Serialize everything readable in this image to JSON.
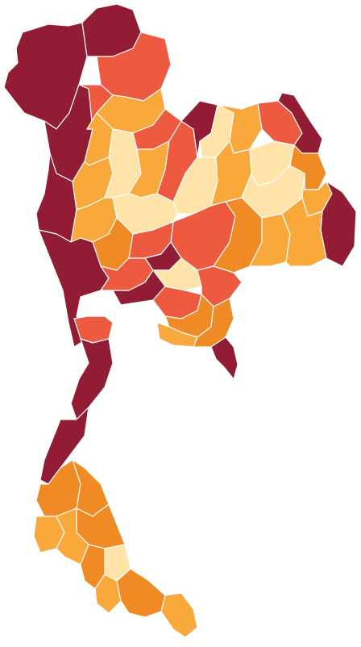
{
  "map": {
    "legend_visible": false,
    "palette": {
      "level_1": "#ffe3a8",
      "level_2": "#f9a93c",
      "level_3": "#f08a24",
      "level_4": "#ed5a3f",
      "level_5": "#911c33"
    },
    "provinces": [
      {
        "id": "north-far-west",
        "level": 5
      },
      {
        "id": "north-west",
        "level": 5
      },
      {
        "id": "north-north",
        "level": 5
      },
      {
        "id": "north-east-a",
        "level": 4
      },
      {
        "id": "north-east-b",
        "level": 4
      },
      {
        "id": "north-mid-a",
        "level": 2
      },
      {
        "id": "north-mid-b",
        "level": 2
      },
      {
        "id": "north-mid-c",
        "level": 4
      },
      {
        "id": "lower-north-west",
        "level": 5
      },
      {
        "id": "lower-north-a",
        "level": 2
      },
      {
        "id": "lower-north-b",
        "level": 1
      },
      {
        "id": "lower-north-c",
        "level": 2
      },
      {
        "id": "lower-north-d",
        "level": 4
      },
      {
        "id": "lower-north-e",
        "level": 5
      },
      {
        "id": "isan-north-a",
        "level": 1
      },
      {
        "id": "isan-north-b",
        "level": 2
      },
      {
        "id": "isan-north-c",
        "level": 4
      },
      {
        "id": "isan-north-d",
        "level": 5
      },
      {
        "id": "isan-west-a",
        "level": 1
      },
      {
        "id": "isan-west-b",
        "level": 2
      },
      {
        "id": "isan-mid-a",
        "level": 1
      },
      {
        "id": "isan-mid-b",
        "level": 1
      },
      {
        "id": "isan-mid-c",
        "level": 3
      },
      {
        "id": "isan-east-a",
        "level": 2
      },
      {
        "id": "isan-east-b",
        "level": 5
      },
      {
        "id": "isan-south-a",
        "level": 4
      },
      {
        "id": "isan-south-b",
        "level": 3
      },
      {
        "id": "isan-south-c",
        "level": 2
      },
      {
        "id": "isan-south-d",
        "level": 2
      },
      {
        "id": "central-north-a",
        "level": 2
      },
      {
        "id": "central-north-b",
        "level": 1
      },
      {
        "id": "central-a",
        "level": 3
      },
      {
        "id": "central-b",
        "level": 4
      },
      {
        "id": "central-c",
        "level": 5
      },
      {
        "id": "central-d",
        "level": 1
      },
      {
        "id": "central-e",
        "level": 4
      },
      {
        "id": "west-a",
        "level": 5
      },
      {
        "id": "west-b",
        "level": 4
      },
      {
        "id": "bangkok-area",
        "level": 5
      },
      {
        "id": "east-a",
        "level": 4
      },
      {
        "id": "east-b",
        "level": 3
      },
      {
        "id": "east-c",
        "level": 2
      },
      {
        "id": "east-d",
        "level": 3
      },
      {
        "id": "east-e",
        "level": 5
      },
      {
        "id": "south-west-a",
        "level": 4
      },
      {
        "id": "south-west-b",
        "level": 5
      },
      {
        "id": "south-a",
        "level": 5
      },
      {
        "id": "south-b",
        "level": 3
      },
      {
        "id": "south-c",
        "level": 3
      },
      {
        "id": "south-d",
        "level": 2
      },
      {
        "id": "south-e",
        "level": 3
      },
      {
        "id": "south-f",
        "level": 2
      },
      {
        "id": "south-g",
        "level": 1
      },
      {
        "id": "south-h",
        "level": 3
      },
      {
        "id": "south-i",
        "level": 2
      },
      {
        "id": "south-j",
        "level": 3
      },
      {
        "id": "south-k",
        "level": 2
      }
    ]
  }
}
